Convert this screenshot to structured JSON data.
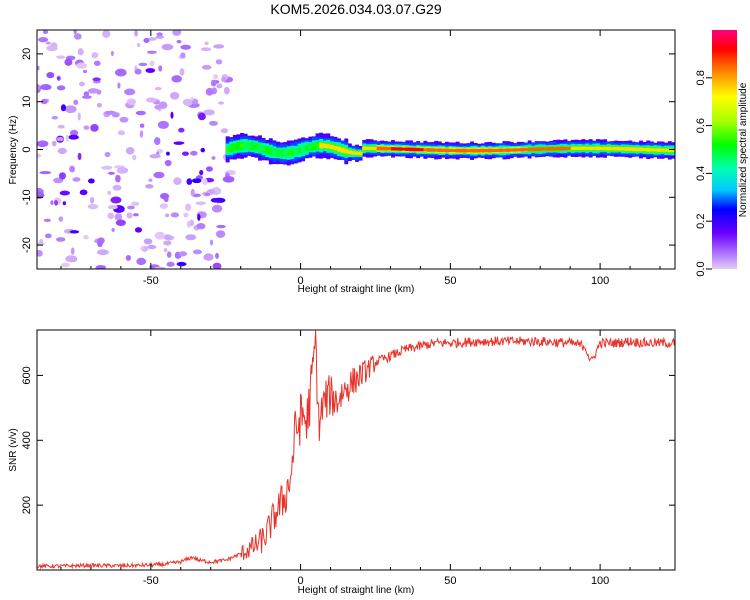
{
  "figure": {
    "title": "KOM5.2026.034.03.07.G29"
  },
  "chart_data": [
    {
      "type": "heatmap",
      "xlabel": "Height of straight line (km)",
      "ylabel": "Frequency (Hz)",
      "xlim": [
        -88,
        125
      ],
      "ylim": [
        -25,
        25
      ],
      "xticks": [
        -50,
        0,
        50,
        100
      ],
      "yticks": [
        -20,
        -10,
        0,
        10,
        20
      ],
      "colorbar": {
        "label": "Normalized spectral amplitude",
        "range": [
          0.0,
          1.0
        ],
        "ticks": [
          "0.0",
          "0.2",
          "0.4",
          "0.6",
          "0.8"
        ]
      },
      "description_features": {
        "main_band_frequency_hz": 0,
        "main_band_start_km": -25,
        "main_band_end_km": 125,
        "noise_region_km": [
          -88,
          -25
        ]
      }
    },
    {
      "type": "line",
      "xlabel": "Height of straight line (km)",
      "ylabel": "SNR (v/v)",
      "xlim": [
        -88,
        125
      ],
      "ylim": [
        0,
        740
      ],
      "xticks": [
        -50,
        0,
        50,
        100
      ],
      "yticks": [
        200,
        400,
        600
      ],
      "color": "#e8332a",
      "series": [
        {
          "x": [
            -88,
            -80,
            -70,
            -60,
            -50,
            -45,
            -40,
            -36,
            -34,
            -30,
            -25,
            -20,
            -15,
            -12,
            -10,
            -8,
            -5,
            -3,
            -2,
            0,
            1,
            2,
            3,
            4,
            5,
            6,
            8,
            10,
            12,
            15,
            20,
            25,
            30,
            35,
            40,
            45,
            50,
            60,
            70,
            80,
            90,
            95,
            97,
            100,
            105,
            110,
            115,
            125
          ],
          "values": [
            12,
            12,
            14,
            13,
            15,
            18,
            25,
            40,
            30,
            25,
            30,
            50,
            75,
            100,
            140,
            180,
            230,
            300,
            420,
            460,
            480,
            450,
            520,
            600,
            720,
            450,
            520,
            540,
            520,
            560,
            600,
            640,
            660,
            680,
            690,
            700,
            700,
            705,
            705,
            705,
            700,
            690,
            640,
            700,
            700,
            705,
            700,
            700
          ]
        }
      ]
    }
  ]
}
